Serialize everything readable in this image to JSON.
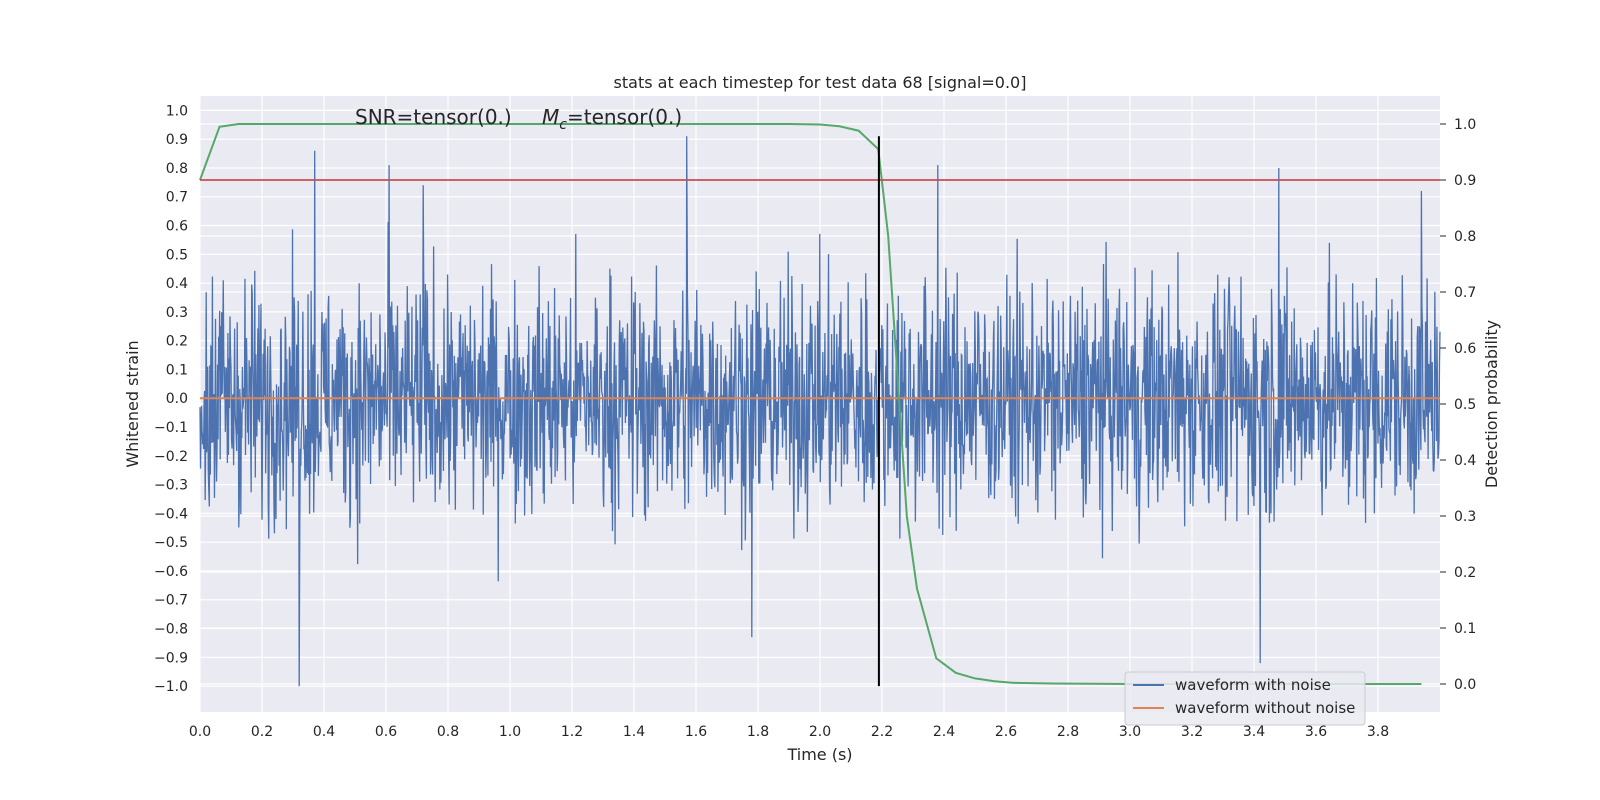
{
  "chart_data": {
    "type": "line",
    "title": "stats at each timestep for test data 68 [signal=0.0]",
    "xlabel": "Time (s)",
    "ylabel": "Whitened strain",
    "y2label": "Detection probability",
    "annotation": {
      "snr_text": "SNR=tensor(0.)",
      "mc_symbol": "M",
      "mc_sub": "c",
      "mc_text": "=tensor(0.)"
    },
    "xlim": [
      0.0,
      4.0
    ],
    "ylim": [
      -1.09,
      1.05
    ],
    "y2lim": [
      -0.05,
      1.05
    ],
    "xticks": [
      0.0,
      0.2,
      0.4,
      0.6,
      0.8,
      1.0,
      1.2,
      1.4,
      1.6,
      1.8,
      2.0,
      2.2,
      2.4,
      2.6,
      2.8,
      3.0,
      3.2,
      3.4,
      3.6,
      3.8
    ],
    "xtick_labels": [
      "0.0",
      "0.2",
      "0.4",
      "0.6",
      "0.8",
      "1.0",
      "1.2",
      "1.4",
      "1.6",
      "1.8",
      "2.0",
      "2.2",
      "2.4",
      "2.6",
      "2.8",
      "3.0",
      "3.2",
      "3.4",
      "3.6",
      "3.8"
    ],
    "yticks": [
      -1.0,
      -0.9,
      -0.8,
      -0.7,
      -0.6,
      -0.5,
      -0.4,
      -0.3,
      -0.2,
      -0.1,
      0.0,
      0.1,
      0.2,
      0.3,
      0.4,
      0.5,
      0.6,
      0.7,
      0.8,
      0.9,
      1.0
    ],
    "ytick_labels": [
      "−1.0",
      "−0.9",
      "−0.8",
      "−0.7",
      "−0.6",
      "−0.5",
      "−0.4",
      "−0.3",
      "−0.2",
      "−0.1",
      "0.0",
      "0.1",
      "0.2",
      "0.3",
      "0.4",
      "0.5",
      "0.6",
      "0.7",
      "0.8",
      "0.9",
      "1.0"
    ],
    "y2ticks": [
      0.0,
      0.1,
      0.2,
      0.3,
      0.4,
      0.5,
      0.6,
      0.7,
      0.8,
      0.9,
      1.0
    ],
    "y2tick_labels": [
      "0.0",
      "0.1",
      "0.2",
      "0.3",
      "0.4",
      "0.5",
      "0.6",
      "0.7",
      "0.8",
      "0.9",
      "1.0"
    ],
    "grid": true,
    "legend_position": "lower-right",
    "series": [
      {
        "name": "waveform with noise",
        "color": "#4c72b0",
        "axis": "left",
        "style": "dense-noise",
        "t_start": 0.0,
        "t_end": 4.0,
        "envelope": {
          "typical_max": 0.45,
          "typical_min": -0.45
        },
        "peaks": [
          {
            "t": 0.32,
            "v": -1.0
          },
          {
            "t": 0.37,
            "v": 0.86
          },
          {
            "t": 0.61,
            "v": 0.81
          },
          {
            "t": 1.57,
            "v": 0.91
          },
          {
            "t": 1.78,
            "v": -0.83
          },
          {
            "t": 2.38,
            "v": 0.81
          },
          {
            "t": 3.42,
            "v": -0.92
          },
          {
            "t": 3.48,
            "v": 0.8
          },
          {
            "t": 0.72,
            "v": 0.74
          },
          {
            "t": 3.94,
            "v": 0.72
          }
        ]
      },
      {
        "name": "waveform without noise",
        "color": "#dd8452",
        "axis": "left",
        "x": [
          0.0,
          4.0
        ],
        "y": [
          0.0,
          0.0
        ]
      },
      {
        "name": "",
        "color": "#55a868",
        "axis": "right",
        "x": [
          0.0,
          0.063,
          0.125,
          0.188,
          0.25,
          0.5,
          1.0,
          1.5,
          1.9,
          2.0,
          2.063,
          2.125,
          2.188,
          2.22,
          2.25,
          2.28,
          2.313,
          2.375,
          2.438,
          2.5,
          2.563,
          2.625,
          2.75,
          3.0,
          3.5,
          3.94
        ],
        "y": [
          0.9,
          0.995,
          1.0,
          1.0,
          1.0,
          1.0,
          1.0,
          1.0,
          1.0,
          0.999,
          0.996,
          0.988,
          0.955,
          0.8,
          0.55,
          0.3,
          0.17,
          0.046,
          0.02,
          0.01,
          0.005,
          0.002,
          0.001,
          0.0,
          0.0,
          0.0
        ]
      }
    ],
    "reference_lines": [
      {
        "type": "horizontal",
        "axis": "right",
        "value": 0.9,
        "color": "#c44e52"
      },
      {
        "type": "vertical",
        "value": 2.19,
        "y_from": -1.0,
        "y_to": 0.91,
        "color": "#000000"
      }
    ],
    "legend": [
      {
        "label": "waveform with noise",
        "color": "#4c72b0"
      },
      {
        "label": "waveform without noise",
        "color": "#dd8452"
      }
    ]
  },
  "colors": {
    "plot_background": "#eaeaf2",
    "grid": "#ffffff",
    "text": "#262626"
  }
}
